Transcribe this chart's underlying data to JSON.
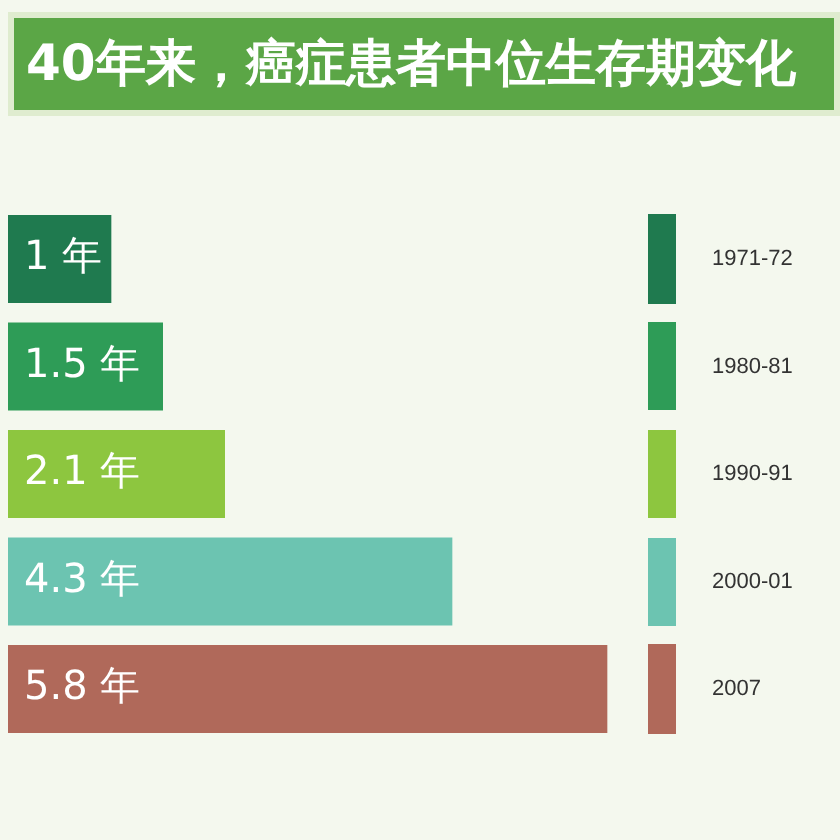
{
  "chart_data": {
    "type": "bar",
    "orientation": "horizontal",
    "title": "40年来，癌症患者中位生存期变化",
    "categories": [
      "1971-72",
      "1980-81",
      "1990-91",
      "2000-01",
      "2007"
    ],
    "values": [
      1,
      1.5,
      2.1,
      4.3,
      5.8
    ],
    "value_labels": [
      "1 年",
      "1.5 年",
      "2.1 年",
      "4.3 年",
      "5.8 年"
    ],
    "colors": [
      "#1f7a4f",
      "#2e9c57",
      "#8dc63f",
      "#6cc4b1",
      "#b0695a"
    ],
    "legend": false
  }
}
